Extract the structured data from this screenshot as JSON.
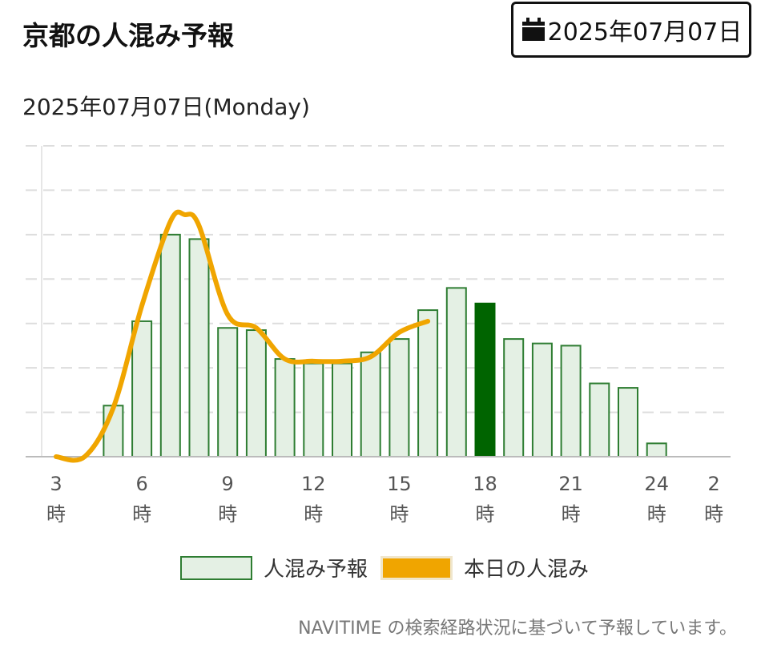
{
  "header": {
    "title": "京都の人混み予報",
    "date_button_label": "2025年07月07日",
    "date_button_icon": "calendar-icon"
  },
  "subtitle": "2025年07月07日(Monday)",
  "legend": {
    "forecast_label": "人混み予報",
    "today_label": "本日の人混み"
  },
  "footnote": "NAVITIME の検索経路状況に基づいて予報しています。",
  "colors": {
    "bar_fill": "#e4f0e4",
    "bar_stroke": "#2e7d32",
    "highlight_bar": "#006400",
    "today_line": "#f0a500",
    "grid": "#dddddd",
    "axis": "#bbbbbb"
  },
  "chart_data": {
    "type": "bar",
    "title": "",
    "xlabel": "",
    "ylabel": "",
    "ylim": [
      0,
      7
    ],
    "grid": true,
    "x_tick_labels": [
      {
        "hour": 3,
        "num": "3",
        "unit": "時"
      },
      {
        "hour": 6,
        "num": "6",
        "unit": "時"
      },
      {
        "hour": 9,
        "num": "9",
        "unit": "時"
      },
      {
        "hour": 12,
        "num": "12",
        "unit": "時"
      },
      {
        "hour": 15,
        "num": "15",
        "unit": "時"
      },
      {
        "hour": 18,
        "num": "18",
        "unit": "時"
      },
      {
        "hour": 21,
        "num": "21",
        "unit": "時"
      },
      {
        "hour": 24,
        "num": "24",
        "unit": "時"
      },
      {
        "hour": 26,
        "num": "2",
        "unit": "時"
      }
    ],
    "series": [
      {
        "name": "人混み予報",
        "type": "bar",
        "hours": [
          5,
          6,
          7,
          8,
          9,
          10,
          11,
          12,
          13,
          14,
          15,
          16,
          17,
          18,
          19,
          20,
          21,
          22,
          23,
          24
        ],
        "values": [
          1.15,
          3.05,
          5.0,
          4.9,
          2.9,
          2.85,
          2.2,
          2.1,
          2.1,
          2.35,
          2.65,
          3.3,
          3.8,
          3.45,
          2.65,
          2.55,
          2.5,
          1.65,
          1.55,
          0.3
        ],
        "highlight_hour": 18
      },
      {
        "name": "本日の人混み",
        "type": "line",
        "hours": [
          3,
          4,
          5,
          6,
          7,
          7.5,
          8,
          9,
          10,
          11,
          12,
          13,
          14,
          15,
          16
        ],
        "values": [
          0.0,
          0.0,
          1.1,
          3.4,
          5.3,
          5.45,
          5.2,
          3.2,
          2.9,
          2.2,
          2.15,
          2.15,
          2.25,
          2.8,
          3.05
        ]
      }
    ]
  }
}
